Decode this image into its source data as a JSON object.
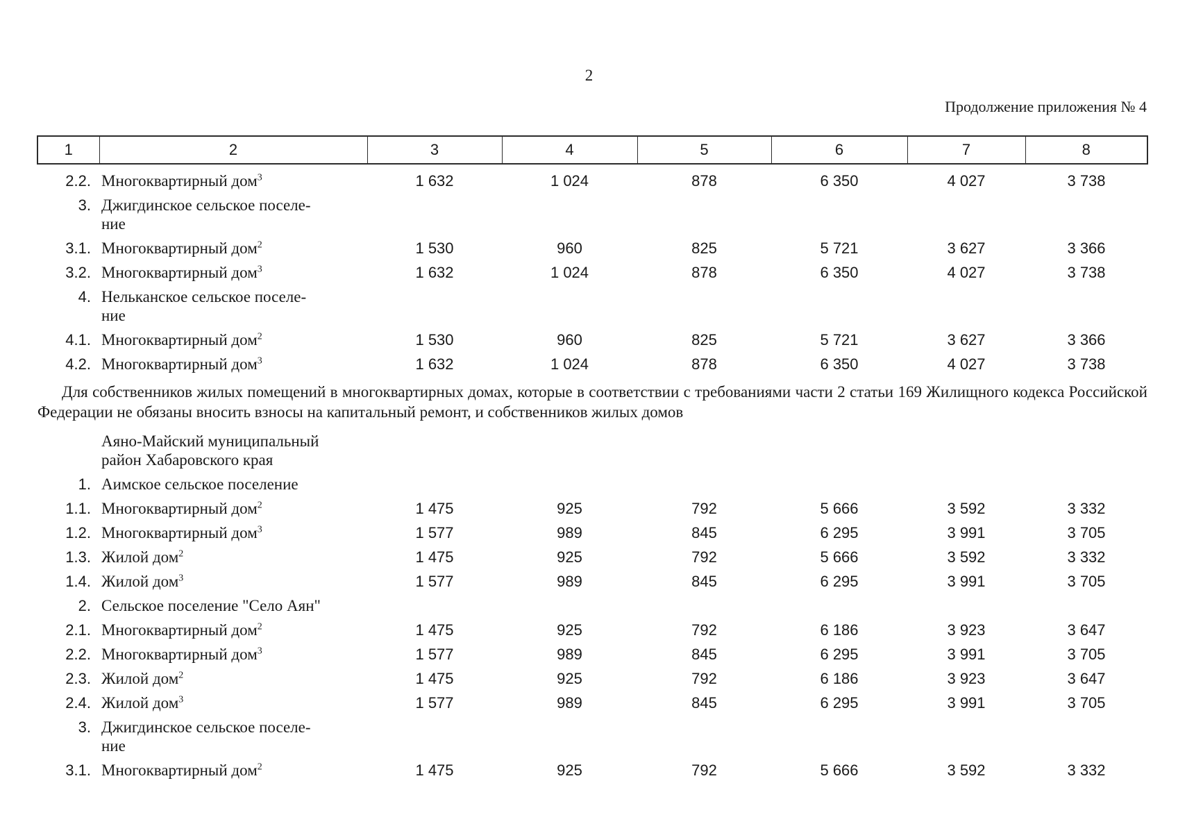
{
  "page": {
    "page_number": "2",
    "continuation_label": "Продолжение приложения № 4"
  },
  "table": {
    "columns": [
      "1",
      "2",
      "3",
      "4",
      "5",
      "6",
      "7",
      "8"
    ],
    "rows": [
      {
        "type": "data",
        "num": "2.2.",
        "label": "Многоквартирный дом",
        "sup": "3",
        "values": [
          "1 632",
          "1 024",
          "878",
          "6 350",
          "4 027",
          "3 738"
        ]
      },
      {
        "type": "data",
        "num": "3.",
        "label": "Джигдинское сельское поселе-\nние",
        "sup": "",
        "values": []
      },
      {
        "type": "data",
        "num": "3.1.",
        "label": "Многоквартирный дом",
        "sup": "2",
        "values": [
          "1 530",
          "960",
          "825",
          "5 721",
          "3 627",
          "3 366"
        ]
      },
      {
        "type": "data",
        "num": "3.2.",
        "label": "Многоквартирный дом",
        "sup": "3",
        "values": [
          "1 632",
          "1 024",
          "878",
          "6 350",
          "4 027",
          "3 738"
        ]
      },
      {
        "type": "data",
        "num": "4.",
        "label": "Нельканское сельское поселе-\nние",
        "sup": "",
        "values": []
      },
      {
        "type": "data",
        "num": "4.1.",
        "label": "Многоквартирный дом",
        "sup": "2",
        "values": [
          "1 530",
          "960",
          "825",
          "5 721",
          "3 627",
          "3 366"
        ]
      },
      {
        "type": "data",
        "num": "4.2.",
        "label": "Многоквартирный дом",
        "sup": "3",
        "values": [
          "1 632",
          "1 024",
          "878",
          "6 350",
          "4 027",
          "3 738"
        ]
      },
      {
        "type": "note",
        "text": "Для собственников жилых помещений в многоквартирных домах, которые в соответствии с требованиями части 2 статьи 169 Жилищного кодекса Российской Федерации не обязаны вносить взносы на капитальный ремонт, и собственников жилых домов"
      },
      {
        "type": "data",
        "num": "",
        "label": "Аяно-Майский муниципальный\nрайон Хабаровского края",
        "sup": "",
        "values": []
      },
      {
        "type": "data",
        "num": "1.",
        "label": "Аимское сельское поселение",
        "sup": "",
        "values": []
      },
      {
        "type": "data",
        "num": "1.1.",
        "label": "Многоквартирный дом",
        "sup": "2",
        "values": [
          "1 475",
          "925",
          "792",
          "5 666",
          "3 592",
          "3 332"
        ]
      },
      {
        "type": "data",
        "num": "1.2.",
        "label": "Многоквартирный дом",
        "sup": "3",
        "values": [
          "1 577",
          "989",
          "845",
          "6 295",
          "3 991",
          "3 705"
        ]
      },
      {
        "type": "data",
        "num": "1.3.",
        "label": "Жилой дом",
        "sup": "2",
        "values": [
          "1 475",
          "925",
          "792",
          "5 666",
          "3 592",
          "3 332"
        ]
      },
      {
        "type": "data",
        "num": "1.4.",
        "label": "Жилой дом",
        "sup": "3",
        "values": [
          "1 577",
          "989",
          "845",
          "6 295",
          "3 991",
          "3 705"
        ]
      },
      {
        "type": "data",
        "num": "2.",
        "label": "Сельское поселение \"Село Аян\"",
        "sup": "",
        "values": []
      },
      {
        "type": "data",
        "num": "2.1.",
        "label": "Многоквартирный дом",
        "sup": "2",
        "values": [
          "1 475",
          "925",
          "792",
          "6 186",
          "3 923",
          "3 647"
        ]
      },
      {
        "type": "data",
        "num": "2.2.",
        "label": "Многоквартирный дом",
        "sup": "3",
        "values": [
          "1 577",
          "989",
          "845",
          "6 295",
          "3 991",
          "3 705"
        ]
      },
      {
        "type": "data",
        "num": "2.3.",
        "label": "Жилой дом",
        "sup": "2",
        "values": [
          "1 475",
          "925",
          "792",
          "6 186",
          "3 923",
          "3 647"
        ]
      },
      {
        "type": "data",
        "num": "2.4.",
        "label": "Жилой дом",
        "sup": "3",
        "values": [
          "1 577",
          "989",
          "845",
          "6 295",
          "3 991",
          "3 705"
        ]
      },
      {
        "type": "data",
        "num": "3.",
        "label": "Джигдинское сельское поселе-\nние",
        "sup": "",
        "values": []
      },
      {
        "type": "data",
        "num": "3.1.",
        "label": "Многоквартирный дом",
        "sup": "2",
        "values": [
          "1 475",
          "925",
          "792",
          "5 666",
          "3 592",
          "3 332"
        ]
      }
    ]
  }
}
